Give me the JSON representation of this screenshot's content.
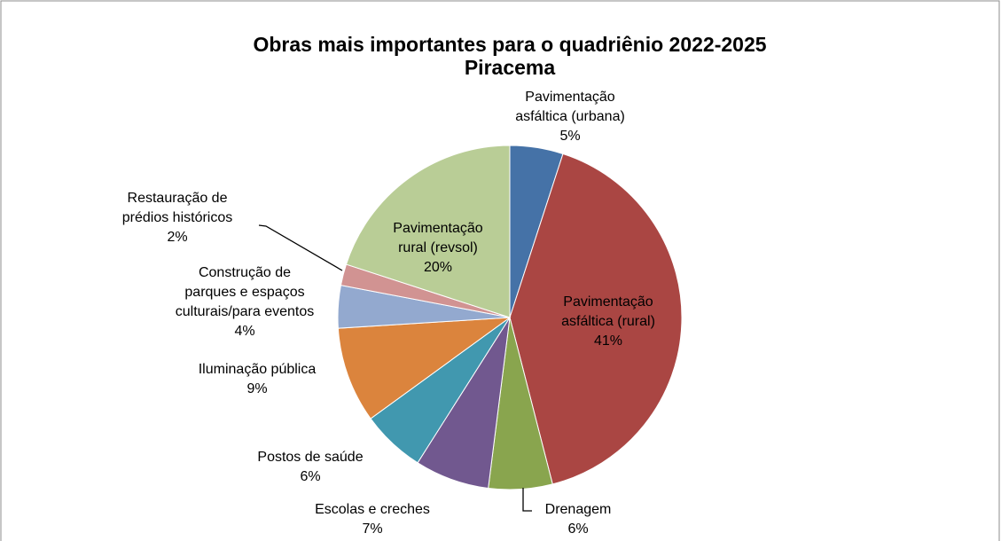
{
  "chart_data": {
    "type": "pie",
    "title": "Obras mais importantes para o quadriênio 2022-2025",
    "subtitle": "Piracema",
    "categories": [
      "Pavimentação asfáltica (urbana)",
      "Pavimentação asfáltica (rural)",
      "Drenagem",
      "Escolas e creches",
      "Postos de saúde",
      "Iluminação pública",
      "Construção de parques e espaços culturais/para eventos",
      "Restauração de prédios históricos",
      "Pavimentação rural (revsol)"
    ],
    "values": [
      5,
      41,
      6,
      7,
      6,
      9,
      4,
      2,
      20
    ],
    "value_labels": [
      "5%",
      "41%",
      "6%",
      "7%",
      "6%",
      "9%",
      "4%",
      "2%",
      "20%"
    ],
    "colors": [
      "#4572a7",
      "#aa4643",
      "#89a54e",
      "#71588f",
      "#4198af",
      "#db843d",
      "#93a9cf",
      "#d19392",
      "#b9cd96"
    ]
  }
}
